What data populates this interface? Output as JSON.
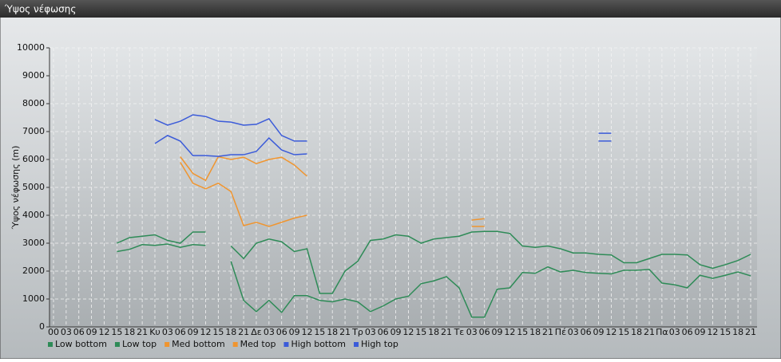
{
  "chart_data": {
    "type": "line",
    "title": "Ύψος νέφωσης",
    "y_label": "Ύψος νέφωσης (m)",
    "categories": [
      "00",
      "03",
      "06",
      "09",
      "12",
      "15",
      "18",
      "21",
      "Κυ",
      "03",
      "06",
      "09",
      "12",
      "15",
      "18",
      "21",
      "Δε",
      "03",
      "06",
      "09",
      "12",
      "15",
      "18",
      "21",
      "Τρ",
      "03",
      "06",
      "09",
      "12",
      "15",
      "18",
      "21",
      "Τε",
      "03",
      "06",
      "09",
      "12",
      "15",
      "18",
      "21",
      "Πέ",
      "03",
      "06",
      "09",
      "12",
      "15",
      "18",
      "21",
      "Πα",
      "03",
      "06",
      "09",
      "12",
      "15",
      "18",
      "21"
    ],
    "ylim": [
      0,
      10000
    ],
    "yticks": [
      0,
      1000,
      2000,
      3000,
      4000,
      5000,
      6000,
      7000,
      8000,
      9000,
      10000
    ],
    "grid": true,
    "series": [
      {
        "name": "Low bottom",
        "color": "#2e8b57",
        "values": [
          null,
          null,
          null,
          null,
          null,
          2700,
          2780,
          2950,
          2920,
          2970,
          2850,
          2950,
          2920,
          null,
          2350,
          950,
          550,
          950,
          520,
          1120,
          1120,
          950,
          900,
          1000,
          900,
          550,
          750,
          1000,
          1100,
          1550,
          1650,
          1800,
          1400,
          350,
          350,
          1350,
          1400,
          1950,
          1920,
          2150,
          1970,
          2030,
          1950,
          1920,
          1900,
          2030,
          2030,
          2060,
          1570,
          1510,
          1400,
          1850,
          1740,
          1850,
          1970,
          1830
        ]
      },
      {
        "name": "Low top",
        "color": "#2e8b57",
        "values": [
          null,
          null,
          null,
          null,
          null,
          3000,
          3200,
          3250,
          3300,
          3100,
          3000,
          3400,
          3400,
          null,
          2900,
          2450,
          3000,
          3150,
          3050,
          2700,
          2800,
          1200,
          1200,
          2000,
          2350,
          3100,
          3150,
          3300,
          3250,
          3000,
          3150,
          3200,
          3250,
          3400,
          3420,
          3420,
          3350,
          2900,
          2850,
          2900,
          2800,
          2650,
          2650,
          2600,
          2580,
          2300,
          2300,
          2450,
          2600,
          2600,
          2580,
          2230,
          2100,
          2230,
          2380,
          2600
        ]
      },
      {
        "name": "Med bottom",
        "color": "#f0952f",
        "values": [
          null,
          null,
          null,
          null,
          null,
          null,
          null,
          null,
          null,
          null,
          5900,
          5150,
          4950,
          5150,
          4850,
          3630,
          3750,
          3600,
          3750,
          3900,
          4000,
          null,
          null,
          null,
          null,
          null,
          null,
          null,
          null,
          null,
          null,
          null,
          null,
          3600,
          3600,
          null,
          null,
          null,
          null,
          null,
          null,
          null,
          null,
          null,
          null,
          null,
          null,
          null,
          null,
          null,
          null,
          null,
          null,
          null,
          null,
          null
        ]
      },
      {
        "name": "Med top",
        "color": "#f0952f",
        "values": [
          null,
          null,
          null,
          null,
          null,
          null,
          null,
          null,
          null,
          null,
          6100,
          5500,
          5250,
          6100,
          6000,
          6080,
          5850,
          6000,
          6080,
          5800,
          5400,
          null,
          null,
          null,
          null,
          null,
          null,
          null,
          null,
          null,
          null,
          null,
          null,
          3830,
          3880,
          null,
          null,
          null,
          null,
          null,
          null,
          null,
          null,
          null,
          null,
          null,
          null,
          null,
          null,
          null,
          null,
          null,
          null,
          null,
          null,
          null
        ]
      },
      {
        "name": "High bottom",
        "color": "#3b5bd9",
        "values": [
          null,
          null,
          null,
          null,
          null,
          null,
          null,
          null,
          6570,
          6860,
          6660,
          6140,
          6140,
          6110,
          6170,
          6170,
          6290,
          6770,
          6340,
          6170,
          6200,
          null,
          null,
          null,
          null,
          null,
          null,
          null,
          null,
          null,
          null,
          null,
          null,
          null,
          null,
          null,
          null,
          null,
          null,
          null,
          null,
          null,
          null,
          6660,
          6660,
          null,
          null,
          null,
          null,
          null,
          null,
          null,
          null,
          null,
          null,
          null
        ]
      },
      {
        "name": "High top",
        "color": "#3b5bd9",
        "values": [
          null,
          null,
          null,
          null,
          null,
          null,
          null,
          null,
          7430,
          7230,
          7370,
          7600,
          7540,
          7370,
          7340,
          7230,
          7260,
          7460,
          6860,
          6660,
          6660,
          null,
          null,
          null,
          null,
          null,
          null,
          null,
          null,
          null,
          null,
          null,
          null,
          null,
          null,
          null,
          null,
          null,
          null,
          null,
          null,
          null,
          null,
          6940,
          6940,
          null,
          null,
          null,
          null,
          null,
          null,
          null,
          null,
          null,
          null,
          null
        ]
      }
    ]
  }
}
